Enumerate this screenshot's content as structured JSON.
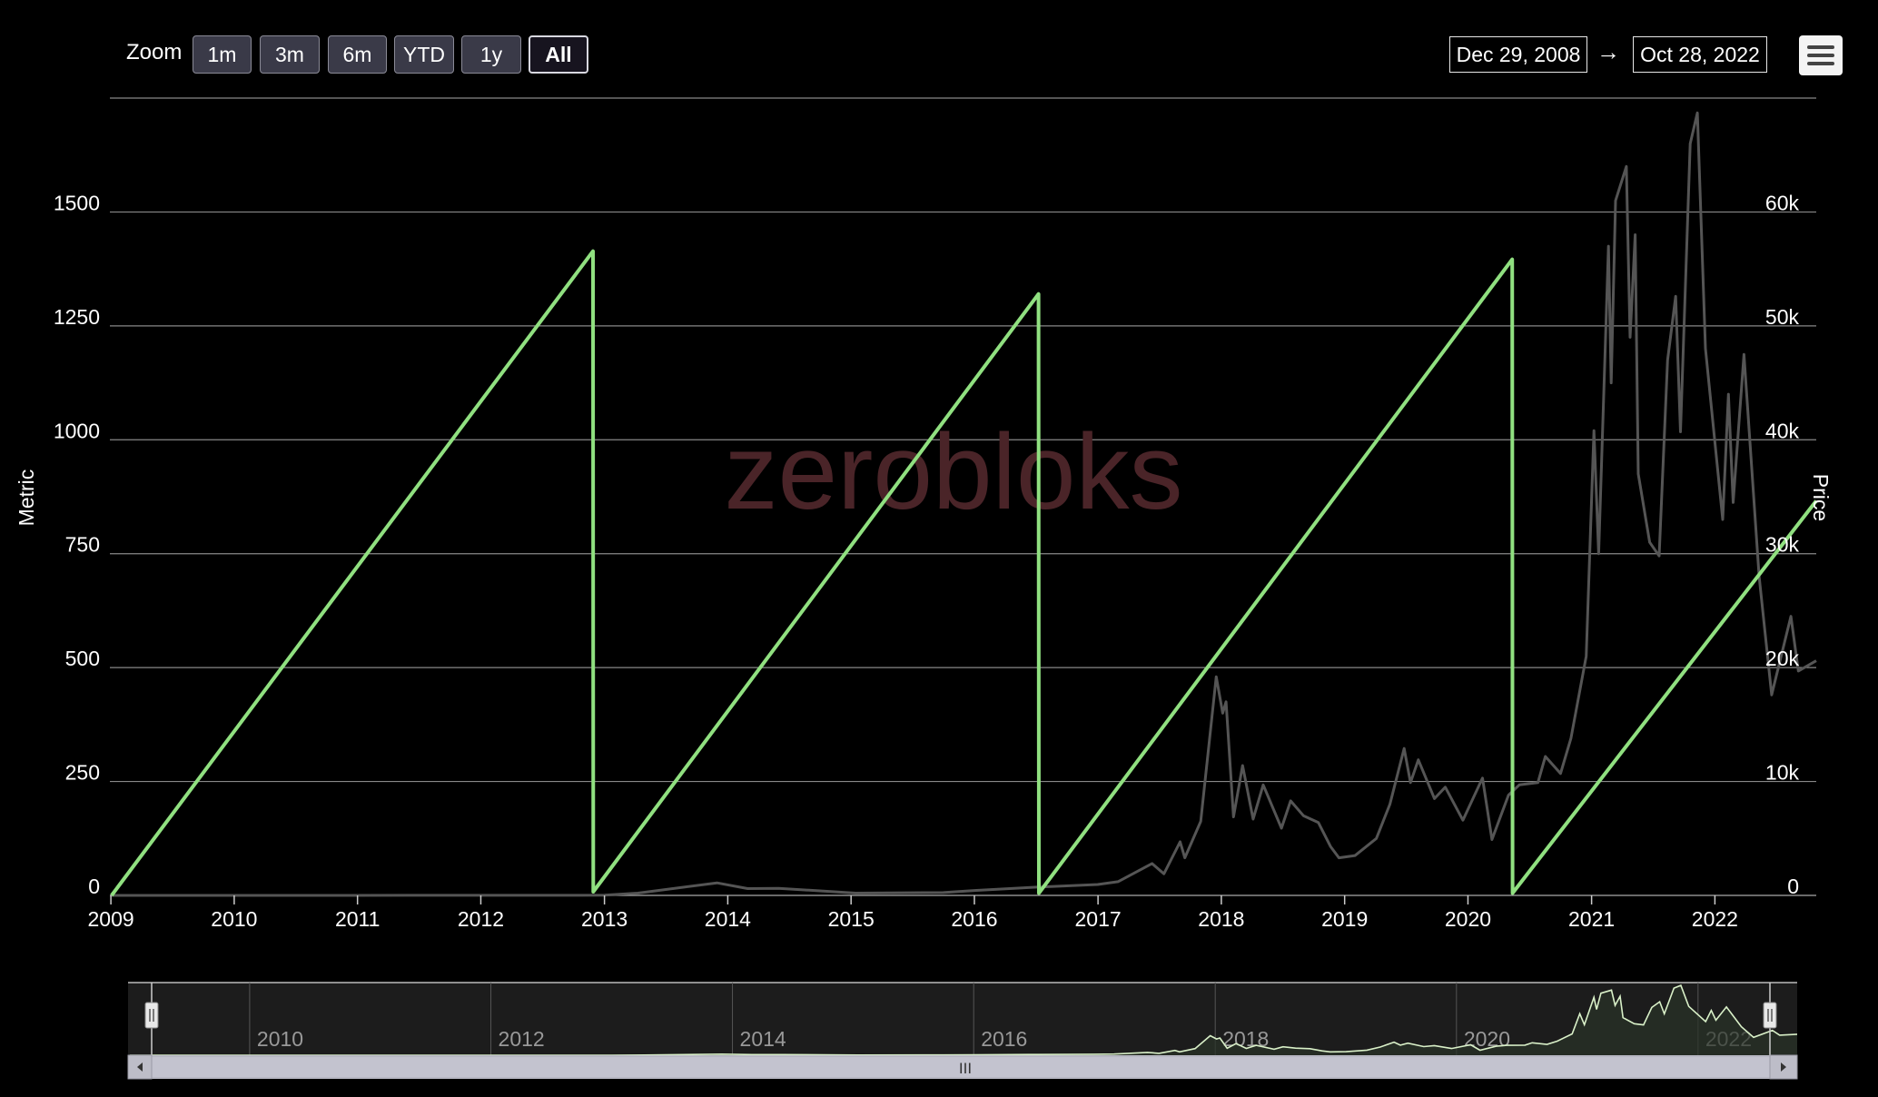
{
  "toolbar": {
    "zoom_label": "Zoom",
    "zoom_buttons": [
      "1m",
      "3m",
      "6m",
      "YTD",
      "1y",
      "All"
    ],
    "active_zoom": "All",
    "date_from": "Dec 29, 2008",
    "date_arrow": "→",
    "date_to": "Oct 28, 2022"
  },
  "watermark": "zerobloks",
  "colors": {
    "background": "#000000",
    "metric_line": "#90e080",
    "price_line": "#555555",
    "grid": "#888888",
    "watermark": "#4a2428",
    "navigator_fill": "#1c1c1c",
    "navigator_line": "#d9f0c8"
  },
  "chart_data": {
    "type": "line",
    "xlabel": "",
    "x_range": [
      "2008-12-29",
      "2022-10-28"
    ],
    "x_ticks": [
      "2009",
      "2010",
      "2011",
      "2012",
      "2013",
      "2014",
      "2015",
      "2016",
      "2017",
      "2018",
      "2019",
      "2020",
      "2021",
      "2022"
    ],
    "y_left": {
      "label": "Metric",
      "range": [
        0,
        1750
      ],
      "ticks": [
        "0",
        "250",
        "500",
        "750",
        "1000",
        "1250",
        "1500"
      ]
    },
    "y_right": {
      "label": "Price",
      "range": [
        0,
        70000
      ],
      "ticks": [
        "0",
        "10k",
        "20k",
        "30k",
        "40k",
        "50k",
        "60k"
      ]
    },
    "grid": true,
    "series": [
      {
        "axis": "left",
        "points": [
          [
            "2009-01-03",
            0
          ],
          [
            "2012-11-28",
            1414
          ],
          [
            "2012-11-29",
            8
          ],
          [
            "2016-07-09",
            1320
          ],
          [
            "2016-07-10",
            5
          ],
          [
            "2020-05-11",
            1396
          ],
          [
            "2020-05-12",
            5
          ],
          [
            "2022-10-28",
            866
          ]
        ]
      },
      {
        "axis": "right",
        "points": [
          [
            "2009-01-03",
            0
          ],
          [
            "2010-07-01",
            0
          ],
          [
            "2011-06-01",
            10
          ],
          [
            "2012-06-01",
            8
          ],
          [
            "2013-01-01",
            13
          ],
          [
            "2013-04-10",
            200
          ],
          [
            "2013-11-30",
            1100
          ],
          [
            "2014-03-01",
            600
          ],
          [
            "2014-06-01",
            620
          ],
          [
            "2015-01-15",
            200
          ],
          [
            "2015-10-01",
            250
          ],
          [
            "2016-01-01",
            430
          ],
          [
            "2016-06-15",
            700
          ],
          [
            "2016-12-31",
            960
          ],
          [
            "2017-03-01",
            1200
          ],
          [
            "2017-06-10",
            2800
          ],
          [
            "2017-07-15",
            1900
          ],
          [
            "2017-09-01",
            4700
          ],
          [
            "2017-09-15",
            3300
          ],
          [
            "2017-11-01",
            6500
          ],
          [
            "2017-12-17",
            19200
          ],
          [
            "2018-01-05",
            16000
          ],
          [
            "2018-01-15",
            17000
          ],
          [
            "2018-02-06",
            6900
          ],
          [
            "2018-03-05",
            11400
          ],
          [
            "2018-04-05",
            6700
          ],
          [
            "2018-05-05",
            9700
          ],
          [
            "2018-06-28",
            5900
          ],
          [
            "2018-07-25",
            8300
          ],
          [
            "2018-09-01",
            7000
          ],
          [
            "2018-10-15",
            6400
          ],
          [
            "2018-11-20",
            4300
          ],
          [
            "2018-12-15",
            3300
          ],
          [
            "2019-02-01",
            3500
          ],
          [
            "2019-04-05",
            5000
          ],
          [
            "2019-05-15",
            8000
          ],
          [
            "2019-06-26",
            12900
          ],
          [
            "2019-07-15",
            9900
          ],
          [
            "2019-08-07",
            11900
          ],
          [
            "2019-09-24",
            8500
          ],
          [
            "2019-10-26",
            9500
          ],
          [
            "2019-12-17",
            6600
          ],
          [
            "2020-02-13",
            10300
          ],
          [
            "2020-03-12",
            4900
          ],
          [
            "2020-04-30",
            8800
          ],
          [
            "2020-06-01",
            9700
          ],
          [
            "2020-07-26",
            9900
          ],
          [
            "2020-08-17",
            12200
          ],
          [
            "2020-10-01",
            10700
          ],
          [
            "2020-11-01",
            13800
          ],
          [
            "2020-12-16",
            21000
          ],
          [
            "2021-01-08",
            40800
          ],
          [
            "2021-01-22",
            30000
          ],
          [
            "2021-02-20",
            57000
          ],
          [
            "2021-02-28",
            45000
          ],
          [
            "2021-03-13",
            61000
          ],
          [
            "2021-04-14",
            64000
          ],
          [
            "2021-04-25",
            49000
          ],
          [
            "2021-05-10",
            58000
          ],
          [
            "2021-05-19",
            37000
          ],
          [
            "2021-06-22",
            31000
          ],
          [
            "2021-07-20",
            29800
          ],
          [
            "2021-08-14",
            47000
          ],
          [
            "2021-09-07",
            52600
          ],
          [
            "2021-09-21",
            40700
          ],
          [
            "2021-10-20",
            66000
          ],
          [
            "2021-11-10",
            68700
          ],
          [
            "2021-12-04",
            48000
          ],
          [
            "2022-01-24",
            33000
          ],
          [
            "2022-02-10",
            44000
          ],
          [
            "2022-02-24",
            34500
          ],
          [
            "2022-03-28",
            47500
          ],
          [
            "2022-05-12",
            28000
          ],
          [
            "2022-06-18",
            17600
          ],
          [
            "2022-08-14",
            24500
          ],
          [
            "2022-09-05",
            19700
          ],
          [
            "2022-10-28",
            20600
          ]
        ]
      }
    ]
  },
  "navigator": {
    "labels": [
      "2010",
      "2012",
      "2014",
      "2016",
      "2018",
      "2020",
      "2022"
    ],
    "scroll_grip": "III"
  }
}
